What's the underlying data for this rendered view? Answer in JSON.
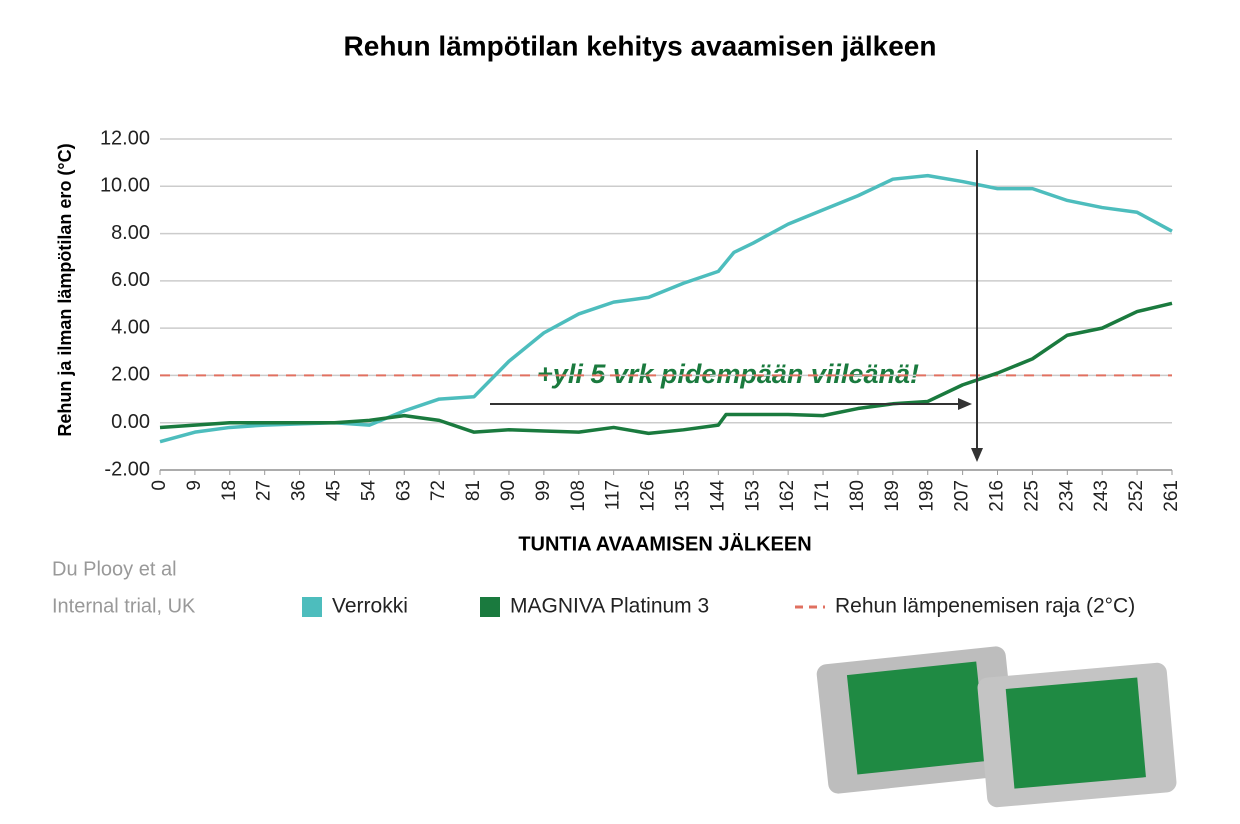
{
  "chart_data": {
    "type": "line",
    "title": "Rehun lämpötilan kehitys avaamisen jälkeen",
    "xlabel": "TUNTIA AVAAMISEN JÄLKEEN",
    "ylabel": "Rehun ja ilman lämpötilan ero (°C)",
    "annotation": "+yli 5 vrk pidempään viileänä!",
    "source": [
      "Du Plooy et al",
      "Internal trial, UK"
    ],
    "xlim": [
      0,
      261
    ],
    "xticks": [
      0,
      9,
      18,
      27,
      36,
      45,
      54,
      63,
      72,
      81,
      90,
      99,
      108,
      117,
      126,
      135,
      144,
      153,
      162,
      171,
      180,
      189,
      198,
      207,
      216,
      225,
      234,
      243,
      252,
      261
    ],
    "ylim": [
      -2,
      12
    ],
    "yticks": [
      {
        "value": -2,
        "label": "-2.00"
      },
      {
        "value": 0,
        "label": "0.00"
      },
      {
        "value": 2,
        "label": "2.00"
      },
      {
        "value": 4,
        "label": "4.00"
      },
      {
        "value": 6,
        "label": "6.00"
      },
      {
        "value": 8,
        "label": "8.00"
      },
      {
        "value": 10,
        "label": "10.00"
      },
      {
        "value": 12,
        "label": "12.00"
      }
    ],
    "grid": true,
    "series": [
      {
        "name": "Verrokki",
        "color": "#4dbdbd",
        "x": [
          0,
          9,
          18,
          27,
          36,
          45,
          54,
          63,
          72,
          81,
          90,
          99,
          108,
          117,
          126,
          135,
          144,
          148,
          153,
          162,
          171,
          180,
          189,
          198,
          207,
          216,
          225,
          234,
          243,
          252,
          261
        ],
        "values": [
          -0.8,
          -0.4,
          -0.2,
          -0.1,
          -0.05,
          0,
          -0.1,
          0.5,
          1.0,
          1.1,
          2.6,
          3.8,
          4.6,
          5.1,
          5.3,
          5.9,
          6.4,
          7.2,
          7.6,
          8.4,
          9.0,
          9.6,
          10.3,
          10.45,
          10.2,
          9.9,
          9.9,
          9.4,
          9.1,
          8.9,
          8.1
        ]
      },
      {
        "name": "MAGNIVA Platinum 3",
        "color": "#1a7a3e",
        "x": [
          0,
          9,
          18,
          27,
          36,
          45,
          54,
          63,
          72,
          81,
          90,
          99,
          108,
          117,
          126,
          135,
          144,
          146,
          153,
          162,
          171,
          180,
          189,
          198,
          207,
          216,
          225,
          234,
          243,
          252,
          261
        ],
        "values": [
          -0.2,
          -0.1,
          0,
          0,
          0,
          0,
          0.1,
          0.3,
          0.1,
          -0.4,
          -0.3,
          -0.35,
          -0.4,
          -0.2,
          -0.45,
          -0.3,
          -0.1,
          0.35,
          0.35,
          0.35,
          0.3,
          0.6,
          0.8,
          0.9,
          1.6,
          2.1,
          2.7,
          3.7,
          4.0,
          4.7,
          5.05
        ]
      }
    ],
    "threshold": {
      "name": "Rehun lämpenemisen raja (2°C)",
      "value": 2,
      "color": "#e07060"
    }
  }
}
